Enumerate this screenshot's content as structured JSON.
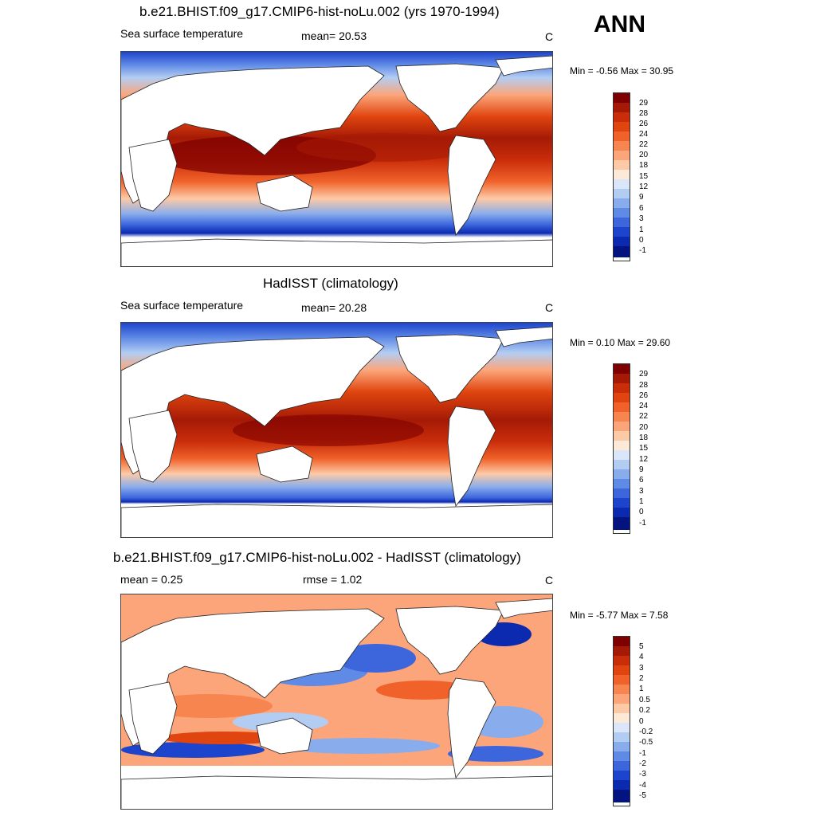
{
  "season": "ANN",
  "panels": [
    {
      "title": "b.e21.BHIST.f09_g17.CMIP6-hist-noLu.002 (yrs 1970-1994)",
      "left_label": "Sea surface temperature",
      "center_label": "mean=  20.53",
      "units": "C",
      "minmax": "Min =  -0.56 Max =  30.95",
      "colorbar_labels": [
        "29",
        "28",
        "26",
        "24",
        "22",
        "20",
        "18",
        "15",
        "12",
        "9",
        "6",
        "3",
        "1",
        "0",
        "-1"
      ]
    },
    {
      "title": "HadISST (climatology)",
      "left_label": "Sea surface temperature",
      "center_label": "mean=  20.28",
      "units": "C",
      "minmax": "Min =   0.10 Max =  29.60",
      "colorbar_labels": [
        "29",
        "28",
        "26",
        "24",
        "22",
        "20",
        "18",
        "15",
        "12",
        "9",
        "6",
        "3",
        "1",
        "0",
        "-1"
      ]
    },
    {
      "title": "b.e21.BHIST.f09_g17.CMIP6-hist-noLu.002 - HadISST (climatology)",
      "left_label": "mean =   0.25",
      "center_label": "rmse =   1.02",
      "units": "C",
      "minmax": "Min =  -5.77 Max =   7.58",
      "colorbar_labels": [
        "5",
        "4",
        "3",
        "2",
        "1",
        "0.5",
        "0.2",
        "0",
        "-0.2",
        "-0.5",
        "-1",
        "-2",
        "-3",
        "-4",
        "-5"
      ]
    }
  ],
  "colors": {
    "sst_scale": [
      "#7f0000",
      "#a51a06",
      "#c92d0a",
      "#e0450f",
      "#f0622a",
      "#f7854f",
      "#fca57a",
      "#fdcaa7",
      "#fde9d8",
      "#dbe7f8",
      "#b3cdf2",
      "#89adec",
      "#5f8ae6",
      "#3d66dd",
      "#1d44cc",
      "#0b2ab0",
      "#03137f"
    ],
    "diff_scale": [
      "#7f0000",
      "#a51a06",
      "#c92d0a",
      "#e0450f",
      "#f0622a",
      "#f7854f",
      "#fca57a",
      "#fdcaa7",
      "#fde9d8",
      "#dbe7f8",
      "#b3cdf2",
      "#89adec",
      "#5f8ae6",
      "#3d66dd",
      "#1d44cc",
      "#0b2ab0",
      "#03137f"
    ]
  }
}
